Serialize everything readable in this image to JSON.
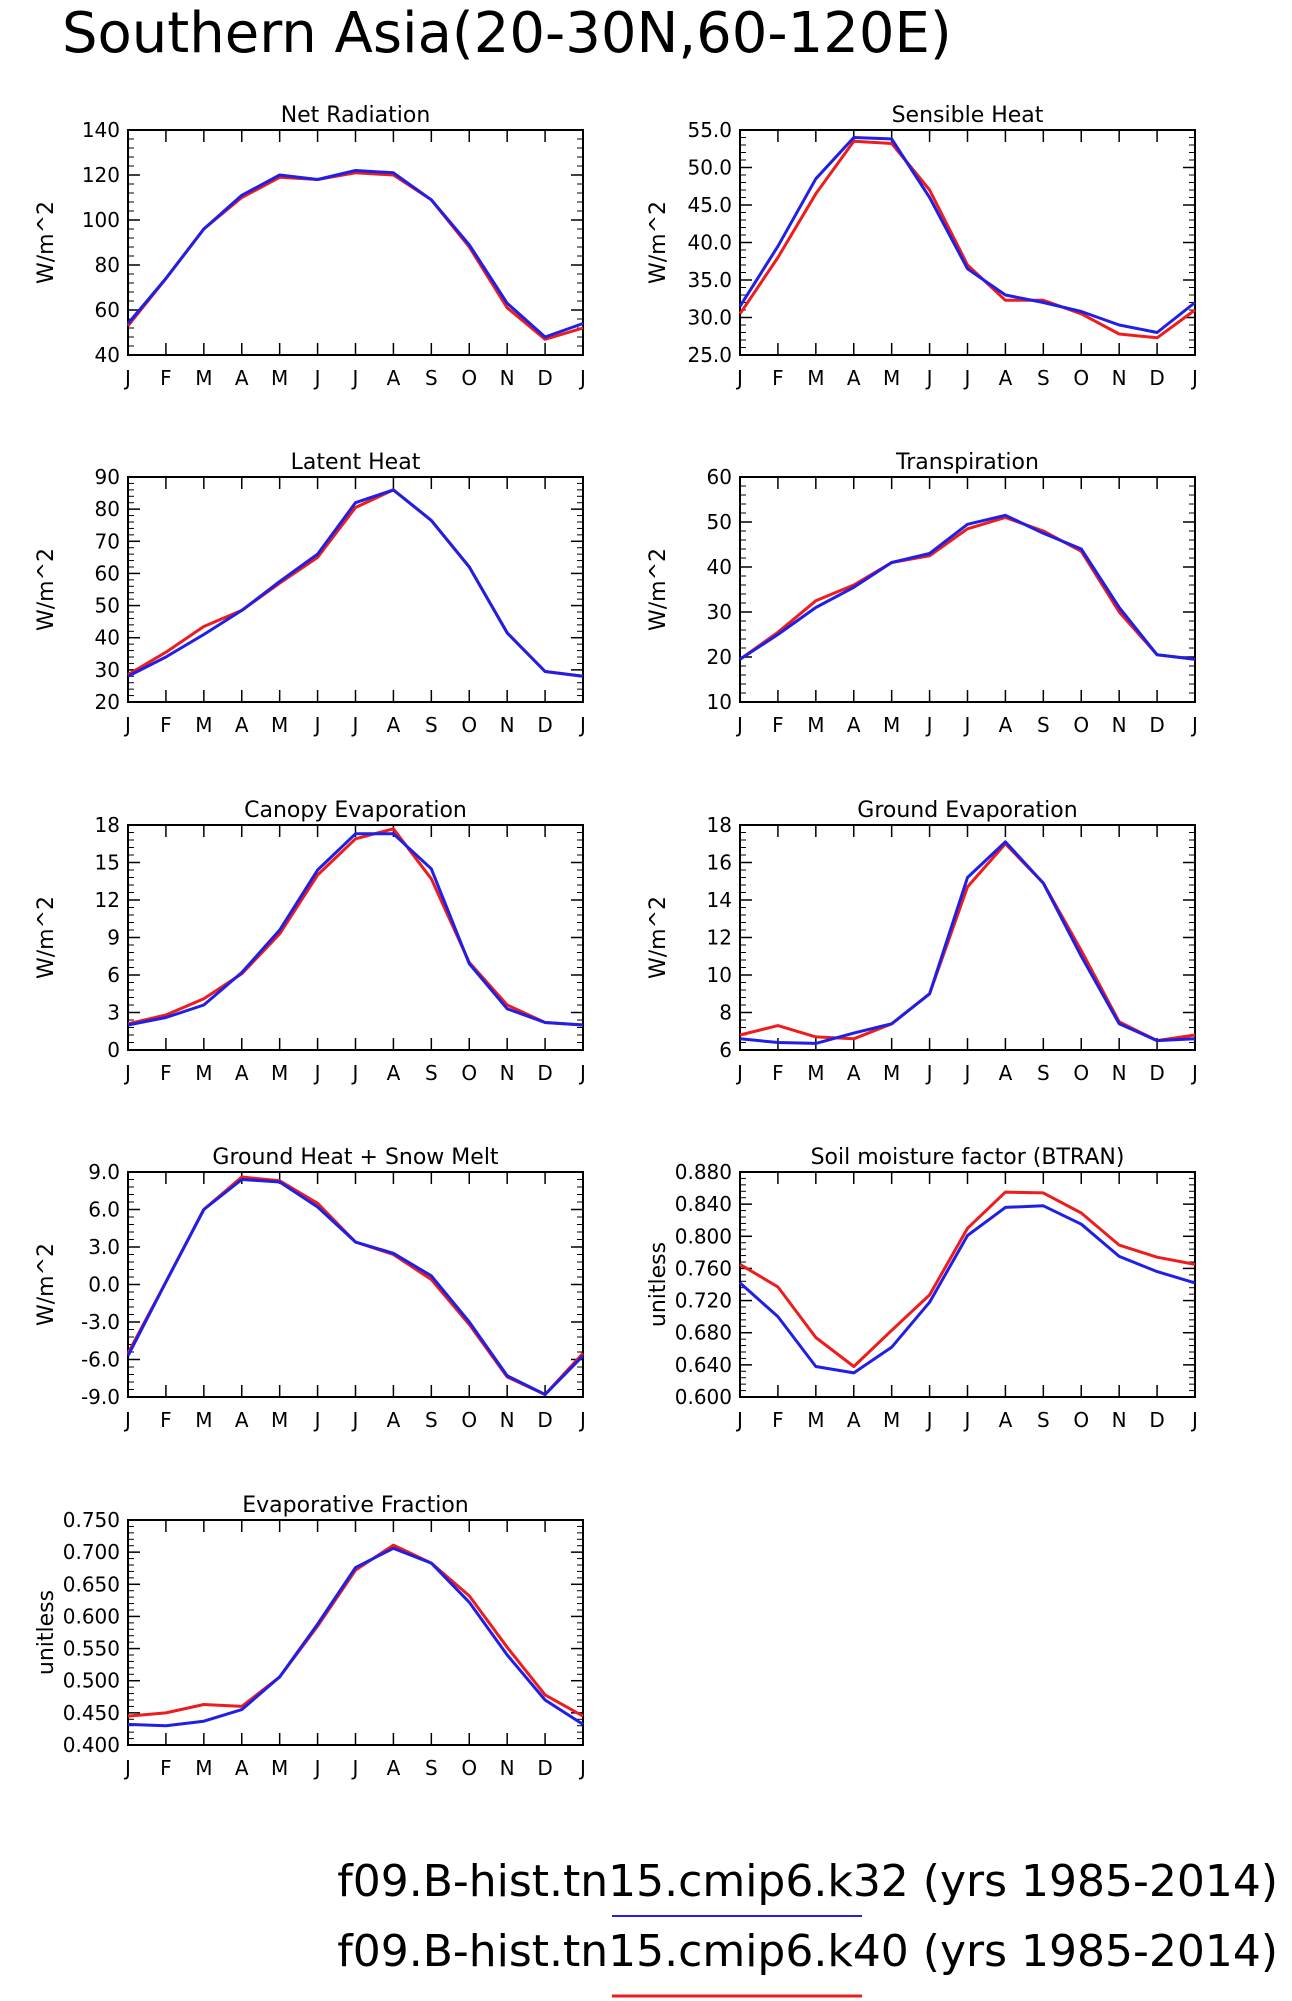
{
  "title": "Southern Asia(20-30N,60-120E)",
  "months": [
    "J",
    "F",
    "M",
    "A",
    "M",
    "J",
    "J",
    "A",
    "S",
    "O",
    "N",
    "D",
    "J"
  ],
  "legend": [
    {
      "label": "f09.B-hist.tn15.cmip6.k32 (yrs 1985-2014)",
      "color": "#1f1fe6"
    },
    {
      "label": "f09.B-hist.tn15.cmip6.k40 (yrs 1985-2014)",
      "color": "#ee1c1c"
    }
  ],
  "colors": {
    "k32": "#1f1fe6",
    "k40": "#ee1c1c",
    "axis": "#000000"
  },
  "chart_data": [
    {
      "type": "line",
      "title": "Net Radiation",
      "ylabel": "W/m^2",
      "ylim": [
        40,
        140
      ],
      "yticks": [
        40,
        60,
        80,
        100,
        120,
        140
      ],
      "ytick_labels": [
        "40",
        "60",
        "80",
        "100",
        "120",
        "140"
      ],
      "series": [
        {
          "name": "f09.B-hist.tn15.cmip6.k32",
          "color": "#1f1fe6",
          "values": [
            54,
            74,
            96,
            111,
            120,
            118,
            122,
            121,
            109,
            89,
            63,
            48,
            54
          ]
        },
        {
          "name": "f09.B-hist.tn15.cmip6.k40",
          "color": "#ee1c1c",
          "values": [
            53,
            74,
            96,
            110,
            119,
            118,
            121,
            120,
            109,
            88,
            61,
            47,
            52
          ]
        }
      ]
    },
    {
      "type": "line",
      "title": "Sensible Heat",
      "ylabel": "W/m^2",
      "ylim": [
        25,
        55
      ],
      "yticks": [
        25,
        30,
        35,
        40,
        45,
        50,
        55
      ],
      "ytick_labels": [
        "25.0",
        "30.0",
        "35.0",
        "40.0",
        "45.0",
        "50.0",
        "55.0"
      ],
      "series": [
        {
          "name": "f09.B-hist.tn15.cmip6.k32",
          "color": "#1f1fe6",
          "values": [
            31.5,
            39.5,
            48.5,
            54.0,
            53.8,
            46.0,
            36.5,
            33.0,
            32.0,
            30.8,
            29.0,
            28.0,
            32.0
          ]
        },
        {
          "name": "f09.B-hist.tn15.cmip6.k40",
          "color": "#ee1c1c",
          "values": [
            30.5,
            38.0,
            46.5,
            53.5,
            53.2,
            47.0,
            37.0,
            32.3,
            32.3,
            30.5,
            27.8,
            27.3,
            31.0
          ]
        }
      ]
    },
    {
      "type": "line",
      "title": "Latent Heat",
      "ylabel": "W/m^2",
      "ylim": [
        20,
        90
      ],
      "yticks": [
        20,
        30,
        40,
        50,
        60,
        70,
        80,
        90
      ],
      "ytick_labels": [
        "20",
        "30",
        "40",
        "50",
        "60",
        "70",
        "80",
        "90"
      ],
      "series": [
        {
          "name": "f09.B-hist.tn15.cmip6.k32",
          "color": "#1f1fe6",
          "values": [
            28,
            34,
            41,
            48.5,
            57.5,
            66,
            82,
            86,
            76.5,
            62,
            41.5,
            29.5,
            28
          ]
        },
        {
          "name": "f09.B-hist.tn15.cmip6.k40",
          "color": "#ee1c1c",
          "values": [
            28.5,
            35.5,
            43.5,
            48.5,
            57,
            65,
            80.5,
            86,
            76.5,
            62,
            41.5,
            29.5,
            28
          ]
        }
      ]
    },
    {
      "type": "line",
      "title": "Transpiration",
      "ylabel": "W/m^2",
      "ylim": [
        10,
        60
      ],
      "yticks": [
        10,
        20,
        30,
        40,
        50,
        60
      ],
      "ytick_labels": [
        "10",
        "20",
        "30",
        "40",
        "50",
        "60"
      ],
      "series": [
        {
          "name": "f09.B-hist.tn15.cmip6.k32",
          "color": "#1f1fe6",
          "values": [
            19.5,
            25,
            31,
            35.5,
            41,
            43,
            49.5,
            51.5,
            47.5,
            44,
            31,
            20.5,
            19.5
          ]
        },
        {
          "name": "f09.B-hist.tn15.cmip6.k40",
          "color": "#ee1c1c",
          "values": [
            19.5,
            25.5,
            32.5,
            36,
            41,
            42.5,
            48.5,
            51,
            48,
            43.5,
            30,
            20.5,
            19.5
          ]
        }
      ]
    },
    {
      "type": "line",
      "title": "Canopy Evaporation",
      "ylabel": "W/m^2",
      "ylim": [
        0,
        18
      ],
      "yticks": [
        0,
        3,
        6,
        9,
        12,
        15,
        18
      ],
      "ytick_labels": [
        "0",
        "3",
        "6",
        "9",
        "12",
        "15",
        "18"
      ],
      "series": [
        {
          "name": "f09.B-hist.tn15.cmip6.k32",
          "color": "#1f1fe6",
          "values": [
            2.0,
            2.6,
            3.6,
            6.2,
            9.6,
            14.4,
            17.3,
            17.3,
            14.5,
            6.9,
            3.3,
            2.2,
            2.0
          ]
        },
        {
          "name": "f09.B-hist.tn15.cmip6.k40",
          "color": "#ee1c1c",
          "values": [
            2.1,
            2.8,
            4.1,
            6.1,
            9.3,
            14.0,
            16.9,
            17.7,
            13.7,
            7.0,
            3.6,
            2.2,
            2.0
          ]
        }
      ]
    },
    {
      "type": "line",
      "title": "Ground Evaporation",
      "ylabel": "W/m^2",
      "ylim": [
        6,
        18
      ],
      "yticks": [
        6,
        8,
        10,
        12,
        14,
        16,
        18
      ],
      "ytick_labels": [
        "6",
        "8",
        "10",
        "12",
        "14",
        "16",
        "18"
      ],
      "series": [
        {
          "name": "f09.B-hist.tn15.cmip6.k32",
          "color": "#1f1fe6",
          "values": [
            6.6,
            6.4,
            6.35,
            6.9,
            7.4,
            9.0,
            15.2,
            17.1,
            14.9,
            11.0,
            7.4,
            6.5,
            6.6
          ]
        },
        {
          "name": "f09.B-hist.tn15.cmip6.k40",
          "color": "#ee1c1c",
          "values": [
            6.8,
            7.3,
            6.7,
            6.6,
            7.4,
            9.0,
            14.7,
            17.0,
            14.9,
            11.3,
            7.5,
            6.5,
            6.8
          ]
        }
      ]
    },
    {
      "type": "line",
      "title": "Ground Heat + Snow Melt",
      "ylabel": "W/m^2",
      "ylim": [
        -9,
        9
      ],
      "yticks": [
        -9,
        -6,
        -3,
        0,
        3,
        6,
        9
      ],
      "ytick_labels": [
        "-9.0",
        "-6.0",
        "-3.0",
        "0.0",
        "3.0",
        "6.0",
        "9.0"
      ],
      "series": [
        {
          "name": "f09.B-hist.tn15.cmip6.k32",
          "color": "#1f1fe6",
          "values": [
            -5.7,
            0.2,
            6.0,
            8.4,
            8.2,
            6.2,
            3.4,
            2.5,
            0.7,
            -3.0,
            -7.3,
            -8.8,
            -5.7
          ]
        },
        {
          "name": "f09.B-hist.tn15.cmip6.k40",
          "color": "#ee1c1c",
          "values": [
            -5.5,
            0.2,
            6.0,
            8.6,
            8.3,
            6.5,
            3.4,
            2.4,
            0.4,
            -3.2,
            -7.4,
            -8.8,
            -5.5
          ]
        }
      ]
    },
    {
      "type": "line",
      "title": "Soil moisture factor (BTRAN)",
      "ylabel": "unitless",
      "ylim": [
        0.6,
        0.88
      ],
      "yticks": [
        0.6,
        0.64,
        0.68,
        0.72,
        0.76,
        0.8,
        0.84,
        0.88
      ],
      "ytick_labels": [
        "0.600",
        "0.640",
        "0.680",
        "0.720",
        "0.760",
        "0.800",
        "0.840",
        "0.880"
      ],
      "series": [
        {
          "name": "f09.B-hist.tn15.cmip6.k32",
          "color": "#1f1fe6",
          "values": [
            0.742,
            0.7,
            0.638,
            0.63,
            0.662,
            0.718,
            0.801,
            0.836,
            0.838,
            0.815,
            0.775,
            0.756,
            0.742
          ]
        },
        {
          "name": "f09.B-hist.tn15.cmip6.k40",
          "color": "#ee1c1c",
          "values": [
            0.765,
            0.737,
            0.674,
            0.638,
            0.683,
            0.727,
            0.81,
            0.855,
            0.854,
            0.829,
            0.789,
            0.774,
            0.765
          ]
        }
      ]
    },
    {
      "type": "line",
      "title": "Evaporative Fraction",
      "ylabel": "unitless",
      "ylim": [
        0.4,
        0.75
      ],
      "yticks": [
        0.4,
        0.45,
        0.5,
        0.55,
        0.6,
        0.65,
        0.7,
        0.75
      ],
      "ytick_labels": [
        "0.400",
        "0.450",
        "0.500",
        "0.550",
        "0.600",
        "0.650",
        "0.700",
        "0.750"
      ],
      "series": [
        {
          "name": "f09.B-hist.tn15.cmip6.k32",
          "color": "#1f1fe6",
          "values": [
            0.432,
            0.43,
            0.437,
            0.455,
            0.506,
            0.588,
            0.676,
            0.706,
            0.683,
            0.622,
            0.54,
            0.47,
            0.432
          ]
        },
        {
          "name": "f09.B-hist.tn15.cmip6.k40",
          "color": "#ee1c1c",
          "values": [
            0.445,
            0.45,
            0.463,
            0.46,
            0.506,
            0.585,
            0.672,
            0.711,
            0.683,
            0.632,
            0.552,
            0.478,
            0.445
          ]
        }
      ]
    }
  ]
}
